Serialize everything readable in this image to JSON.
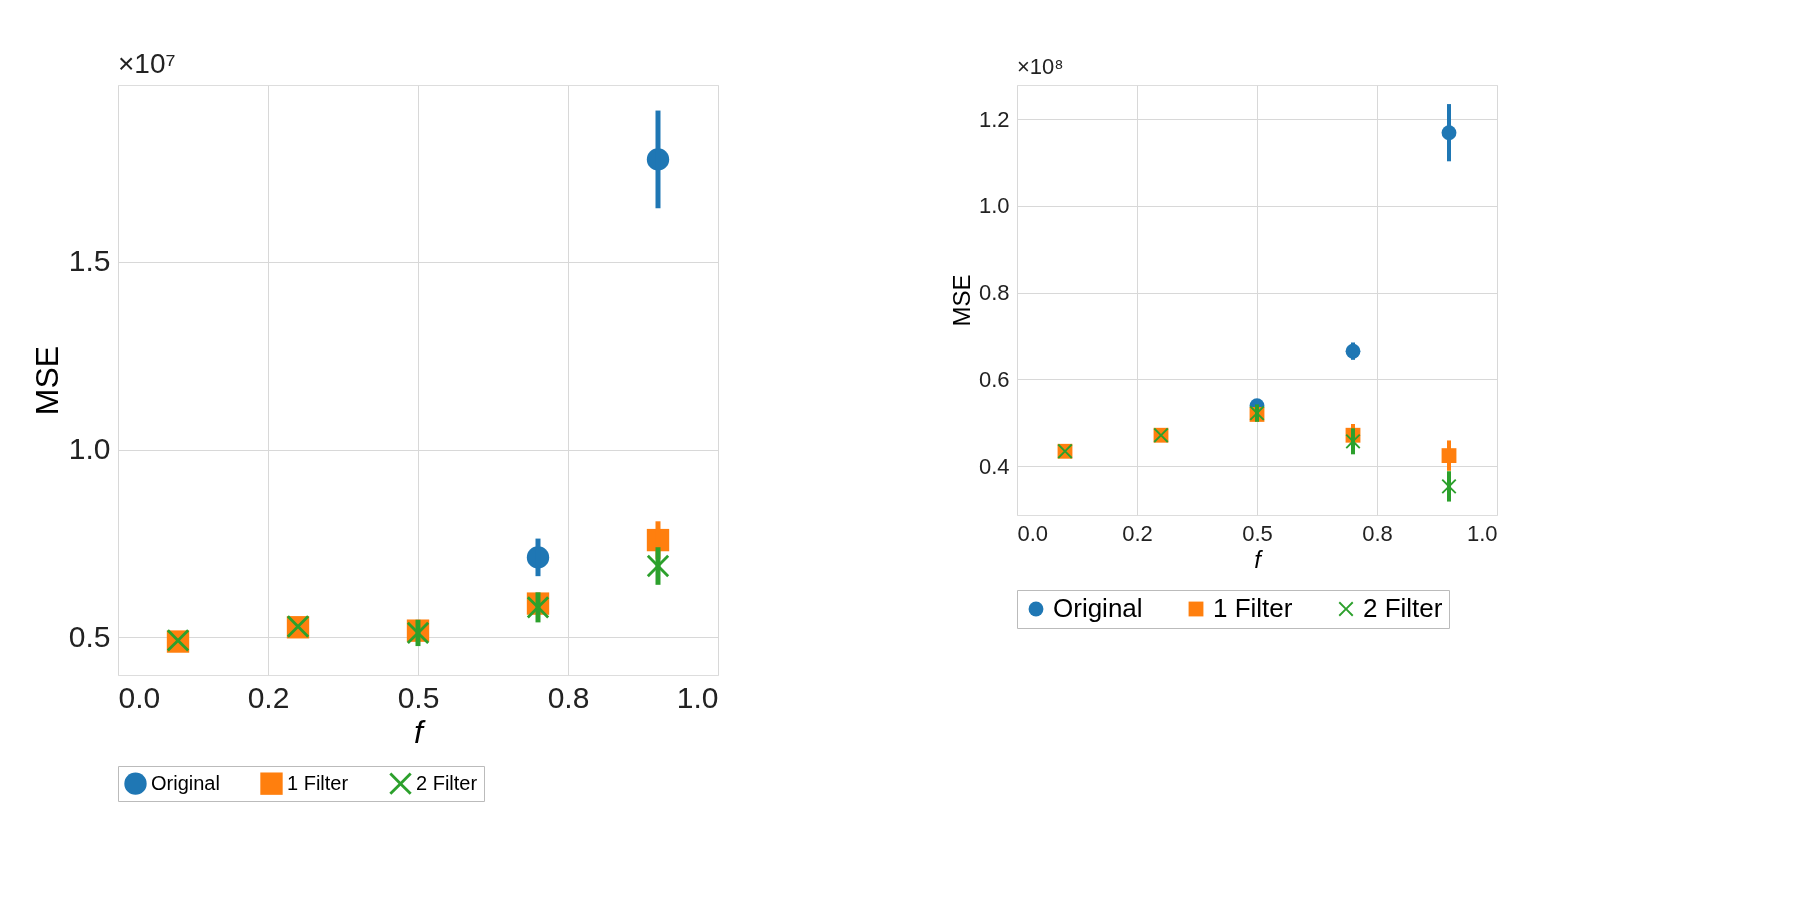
{
  "chart_data": [
    {
      "type": "scatter",
      "xlabel": "f",
      "ylabel": "MSE",
      "annotations": [
        "×10⁷"
      ],
      "x": [
        0.1,
        0.3,
        0.5,
        0.7,
        0.9
      ],
      "xlim": [
        0,
        1
      ],
      "xticks": [
        {
          "value": 0,
          "label": "0.0"
        },
        {
          "value": 0.25,
          "label": "0.2"
        },
        0.5,
        {
          "value": 0.75,
          "label": "0.8"
        },
        {
          "value": 1,
          "label": "1.0"
        }
      ],
      "ylim": [
        0.4,
        1.97
      ],
      "yticks": [
        0.5,
        {
          "value": 1,
          "label": "1.0"
        },
        1.5
      ],
      "grid": true,
      "legend": "bottom",
      "series": [
        {
          "name": "Original",
          "color": "#1f77b4",
          "marker": "circle",
          "values": [
            null,
            null,
            null,
            0.713,
            1.772
          ],
          "errors": [
            null,
            null,
            null,
            0.05,
            0.13
          ]
        },
        {
          "name": "1 Filter",
          "color": "#ff7f0e",
          "marker": "square",
          "values": [
            0.489,
            0.527,
            0.518,
            0.59,
            0.759
          ],
          "errors": [
            null,
            null,
            null,
            null,
            0.05
          ]
        },
        {
          "name": "2 Filter",
          "color": "#2ca02c",
          "marker": "cross",
          "values": [
            0.492,
            0.529,
            0.512,
            0.58,
            0.69
          ],
          "errors": [
            null,
            null,
            0.035,
            0.04,
            0.05
          ]
        }
      ]
    },
    {
      "type": "scatter",
      "xlabel": "f",
      "ylabel": "MSE",
      "annotations": [
        "×10⁸"
      ],
      "x": [
        0.1,
        0.3,
        0.5,
        0.7,
        0.9
      ],
      "xlim": [
        0,
        1
      ],
      "xticks": [
        {
          "value": 0,
          "label": "0.0"
        },
        {
          "value": 0.25,
          "label": "0.2"
        },
        0.5,
        {
          "value": 0.75,
          "label": "0.8"
        },
        {
          "value": 1,
          "label": "1.0"
        }
      ],
      "ylim": [
        0.287,
        1.279
      ],
      "yticks": [
        0.4,
        0.6,
        0.8,
        {
          "value": 1,
          "label": "1.0"
        },
        1.2
      ],
      "grid": true,
      "legend": "bottom",
      "series": [
        {
          "name": "Original",
          "color": "#1f77b4",
          "marker": "circle",
          "values": [
            null,
            null,
            0.539,
            0.665,
            1.169
          ],
          "errors": [
            null,
            null,
            null,
            0.02,
            0.066
          ]
        },
        {
          "name": "1 Filter",
          "color": "#ff7f0e",
          "marker": "square",
          "values": [
            0.434,
            0.471,
            0.519,
            0.471,
            0.424
          ],
          "errors": [
            null,
            null,
            null,
            0.026,
            0.035
          ]
        },
        {
          "name": "2 Filter",
          "color": "#2ca02c",
          "marker": "cross",
          "values": [
            0.434,
            0.471,
            0.522,
            0.457,
            0.353
          ],
          "errors": [
            null,
            null,
            0.02,
            0.03,
            0.035
          ]
        }
      ]
    }
  ]
}
